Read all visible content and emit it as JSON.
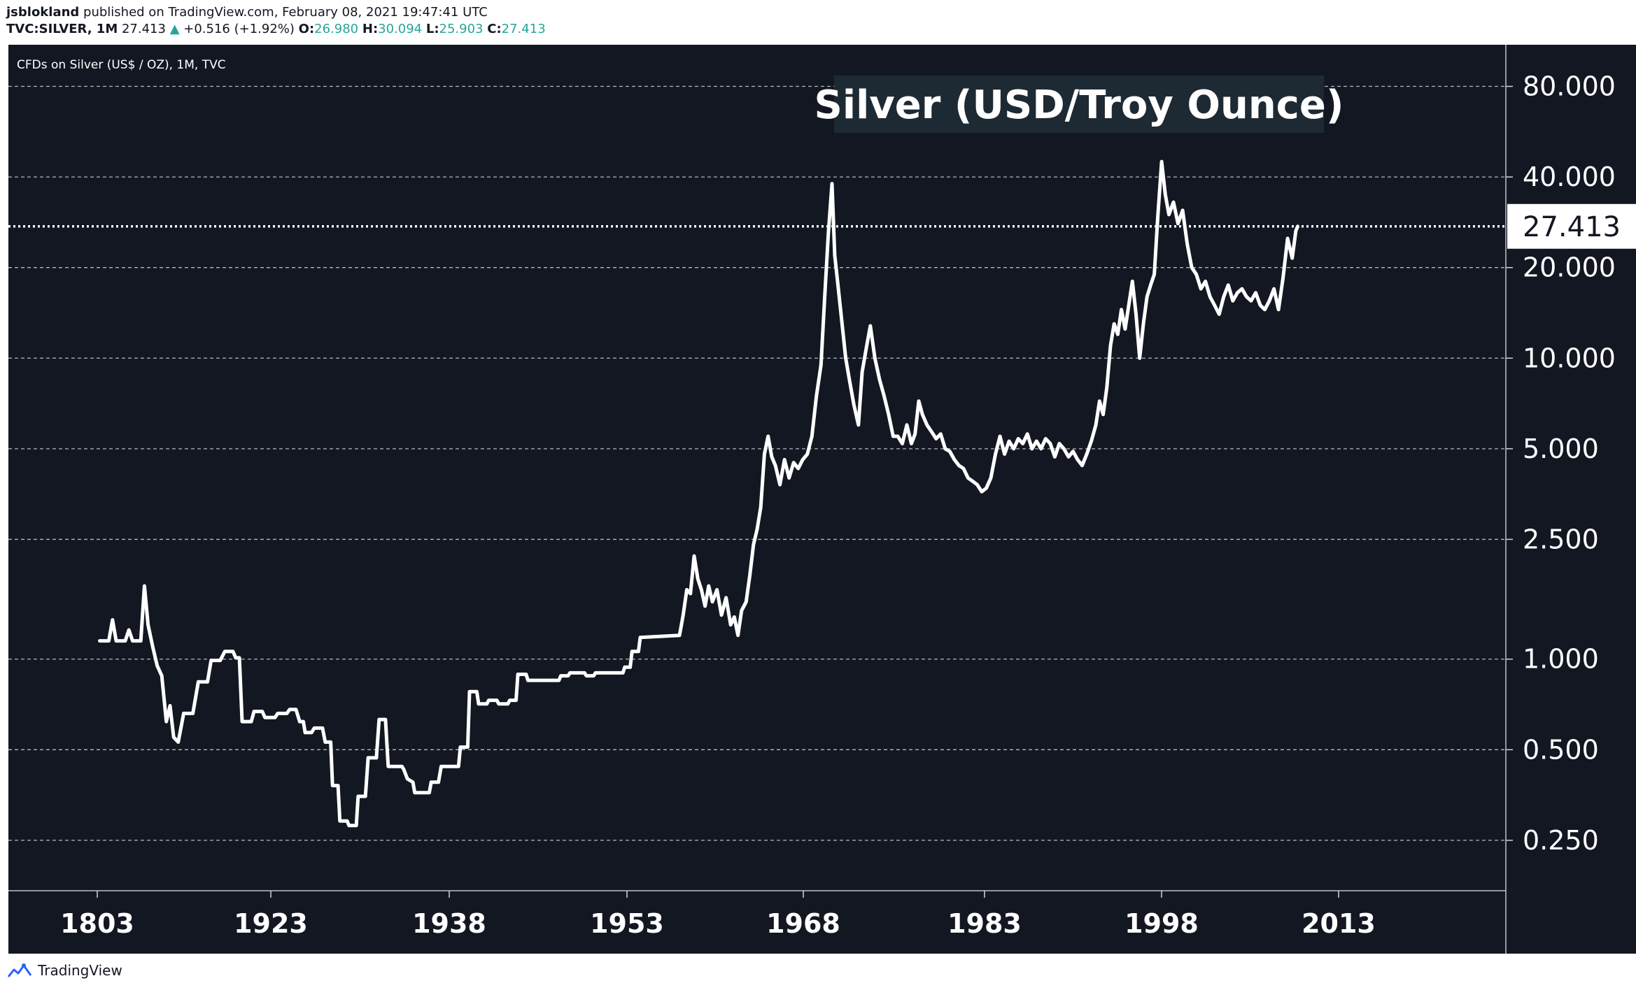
{
  "header": {
    "author": "jsblokland",
    "published_text": "published on TradingView.com, February 08, 2021 19:47:41 UTC",
    "symbol": "TVC:SILVER, 1M",
    "last": "27.413",
    "change_arrow": "▲",
    "change": "+0.516 (+1.92%)",
    "o_label": "O:",
    "o_value": "26.980",
    "h_label": "H:",
    "h_value": "30.094",
    "l_label": "L:",
    "l_value": "25.903",
    "c_label": "C:",
    "c_value": "27.413"
  },
  "footer": {
    "brand": "TradingView",
    "logo_icon": "tradingview-logo-icon"
  },
  "colors": {
    "background": "#131722",
    "line": "#ffffff",
    "grid": "#d1d4dc",
    "text": "#ffffff",
    "accent_up": "#26a69a"
  },
  "chart_data": {
    "type": "line",
    "title": "Silver (USD/Troy Ounce)",
    "subtitle": "CFDs on Silver (US$ / OZ), 1M, TVC",
    "y_scale": "log",
    "ylim": [
      0.17,
      110
    ],
    "x_ticks": [
      "1803",
      "1923",
      "1938",
      "1953",
      "1968",
      "1983",
      "1998",
      "2013"
    ],
    "y_ticks": [
      "80.000",
      "40.000",
      "20.000",
      "10.000",
      "5.000",
      "2.500",
      "1.000",
      "0.500",
      "0.250"
    ],
    "last_value_label": "27.413",
    "series": [
      {
        "points": [
          [
            1908,
            1.15
          ],
          [
            1909,
            1.15
          ],
          [
            1909.4,
            1.35
          ],
          [
            1909.8,
            1.15
          ],
          [
            1910.8,
            1.15
          ],
          [
            1911.2,
            1.25
          ],
          [
            1911.6,
            1.15
          ],
          [
            1912.5,
            1.15
          ],
          [
            1912.9,
            1.75
          ],
          [
            1913.3,
            1.3
          ],
          [
            1913.8,
            1.1
          ],
          [
            1914.3,
            0.95
          ],
          [
            1914.8,
            0.88
          ],
          [
            1915.3,
            0.62
          ],
          [
            1915.7,
            0.7
          ],
          [
            1916.1,
            0.55
          ],
          [
            1916.6,
            0.53
          ],
          [
            1917.2,
            0.66
          ],
          [
            1918.2,
            0.66
          ],
          [
            1918.8,
            0.84
          ],
          [
            1919.8,
            0.84
          ],
          [
            1920.2,
            0.99
          ],
          [
            1921.2,
            0.99
          ],
          [
            1921.7,
            1.06
          ],
          [
            1922.6,
            1.06
          ],
          [
            1922.9,
            1.01
          ],
          [
            1923.3,
            1.01
          ],
          [
            1923.6,
            0.62
          ],
          [
            1924.6,
            0.62
          ],
          [
            1924.9,
            0.67
          ],
          [
            1925.8,
            0.67
          ],
          [
            1926.1,
            0.64
          ],
          [
            1927.2,
            0.64
          ],
          [
            1927.5,
            0.66
          ],
          [
            1928.5,
            0.66
          ],
          [
            1928.8,
            0.68
          ],
          [
            1929.5,
            0.68
          ],
          [
            1929.9,
            0.62
          ],
          [
            1930.3,
            0.62
          ],
          [
            1930.5,
            0.57
          ],
          [
            1931.2,
            0.57
          ],
          [
            1931.5,
            0.59
          ],
          [
            1932.4,
            0.59
          ],
          [
            1932.7,
            0.53
          ],
          [
            1933.3,
            0.53
          ],
          [
            1933.5,
            0.38
          ],
          [
            1934.1,
            0.38
          ],
          [
            1934.3,
            0.29
          ],
          [
            1935.1,
            0.29
          ],
          [
            1935.3,
            0.28
          ],
          [
            1936.1,
            0.28
          ],
          [
            1936.3,
            0.35
          ],
          [
            1937.1,
            0.35
          ],
          [
            1937.4,
            0.47
          ],
          [
            1938.3,
            0.47
          ],
          [
            1938.6,
            0.63
          ],
          [
            1939.3,
            0.63
          ],
          [
            1939.6,
            0.44
          ],
          [
            1941.1,
            0.44
          ],
          [
            1941.3,
            0.43
          ],
          [
            1941.7,
            0.4
          ],
          [
            1942.3,
            0.39
          ],
          [
            1942.5,
            0.36
          ],
          [
            1944.1,
            0.36
          ],
          [
            1944.3,
            0.39
          ],
          [
            1945.1,
            0.39
          ],
          [
            1945.4,
            0.44
          ],
          [
            1947.3,
            0.44
          ],
          [
            1947.5,
            0.51
          ],
          [
            1948.3,
            0.51
          ],
          [
            1948.5,
            0.78
          ],
          [
            1949.3,
            0.78
          ],
          [
            1949.5,
            0.71
          ],
          [
            1950.4,
            0.71
          ],
          [
            1950.6,
            0.73
          ],
          [
            1951.5,
            0.73
          ],
          [
            1951.7,
            0.71
          ],
          [
            1952.7,
            0.71
          ],
          [
            1952.9,
            0.73
          ],
          [
            1953.6,
            0.73
          ],
          [
            1953.8,
            0.89
          ],
          [
            1954.7,
            0.89
          ],
          [
            1954.9,
            0.85
          ],
          [
            1958.3,
            0.85
          ],
          [
            1958.5,
            0.88
          ],
          [
            1959.3,
            0.88
          ],
          [
            1959.5,
            0.9
          ],
          [
            1961.1,
            0.9
          ],
          [
            1961.3,
            0.88
          ],
          [
            1962.1,
            0.88
          ],
          [
            1962.3,
            0.9
          ],
          [
            1965.3,
            0.9
          ],
          [
            1965.5,
            0.94
          ],
          [
            1966.1,
            0.94
          ],
          [
            1966.3,
            1.06
          ],
          [
            1967.0,
            1.06
          ],
          [
            1967.2,
            1.18
          ],
          [
            1971.5,
            1.2
          ],
          [
            1971.9,
            1.4
          ],
          [
            1972.3,
            1.7
          ],
          [
            1972.7,
            1.65
          ],
          [
            1973.1,
            2.2
          ],
          [
            1973.5,
            1.85
          ],
          [
            1973.9,
            1.7
          ],
          [
            1974.3,
            1.5
          ],
          [
            1974.7,
            1.75
          ],
          [
            1975.1,
            1.55
          ],
          [
            1975.6,
            1.7
          ],
          [
            1976.1,
            1.4
          ],
          [
            1976.6,
            1.6
          ],
          [
            1977.1,
            1.3
          ],
          [
            1977.5,
            1.38
          ],
          [
            1977.9,
            1.2
          ],
          [
            1978.3,
            1.45
          ],
          [
            1978.8,
            1.55
          ],
          [
            1979.2,
            1.9
          ],
          [
            1979.6,
            2.4
          ],
          [
            1980.0,
            2.7
          ],
          [
            1980.4,
            3.2
          ],
          [
            1980.8,
            4.8
          ],
          [
            1981.2,
            5.5
          ],
          [
            1981.6,
            4.7
          ],
          [
            1982.0,
            4.4
          ],
          [
            1982.5,
            3.8
          ],
          [
            1983.0,
            4.6
          ],
          [
            1983.5,
            4.0
          ],
          [
            1984.0,
            4.5
          ],
          [
            1984.5,
            4.3
          ],
          [
            1985.0,
            4.6
          ],
          [
            1985.5,
            4.8
          ],
          [
            1986.0,
            5.5
          ],
          [
            1986.5,
            7.5
          ],
          [
            1987.0,
            9.5
          ],
          [
            1987.4,
            16.0
          ],
          [
            1987.8,
            26.0
          ],
          [
            1988.2,
            38.0
          ],
          [
            1988.5,
            22.0
          ],
          [
            1988.9,
            17.0
          ],
          [
            1989.3,
            13.0
          ],
          [
            1989.7,
            10.0
          ],
          [
            1990.1,
            8.5
          ],
          [
            1990.6,
            7.0
          ],
          [
            1991.1,
            6.0
          ],
          [
            1991.5,
            9.0
          ],
          [
            1992.0,
            11.0
          ],
          [
            1992.4,
            12.8
          ],
          [
            1992.9,
            10.0
          ],
          [
            1993.4,
            8.5
          ],
          [
            1993.9,
            7.5
          ],
          [
            1994.4,
            6.5
          ],
          [
            1994.9,
            5.5
          ],
          [
            1995.4,
            5.5
          ],
          [
            1995.9,
            5.2
          ],
          [
            1996.4,
            6.0
          ],
          [
            1996.9,
            5.2
          ],
          [
            1997.3,
            5.6
          ],
          [
            1997.7,
            7.2
          ],
          [
            1998.1,
            6.5
          ],
          [
            1998.6,
            6.0
          ],
          [
            1999.1,
            5.7
          ],
          [
            1999.6,
            5.4
          ],
          [
            2000.1,
            5.6
          ],
          [
            2000.6,
            5.0
          ],
          [
            2001.1,
            4.9
          ],
          [
            2001.6,
            4.6
          ],
          [
            2002.1,
            4.4
          ],
          [
            2002.6,
            4.3
          ],
          [
            2003.1,
            4.0
          ],
          [
            2003.6,
            3.9
          ],
          [
            2004.1,
            3.8
          ],
          [
            2004.6,
            3.6
          ],
          [
            2005.1,
            3.7
          ],
          [
            2005.6,
            4.0
          ],
          [
            2006.1,
            4.8
          ],
          [
            2006.6,
            5.5
          ],
          [
            2007.1,
            4.8
          ],
          [
            2007.6,
            5.3
          ],
          [
            2008.1,
            5.0
          ],
          [
            2008.6,
            5.4
          ],
          [
            2009.1,
            5.2
          ],
          [
            2009.6,
            5.6
          ],
          [
            2010.1,
            5.0
          ],
          [
            2010.6,
            5.3
          ],
          [
            2011.1,
            5.0
          ],
          [
            2011.6,
            5.4
          ],
          [
            2012.1,
            5.2
          ],
          [
            2012.6,
            4.7
          ],
          [
            2013.1,
            5.2
          ],
          [
            2013.6,
            5.0
          ],
          [
            2014.1,
            4.7
          ],
          [
            2014.6,
            4.9
          ],
          [
            2015.1,
            4.6
          ],
          [
            2015.6,
            4.4
          ],
          [
            2016.1,
            4.8
          ],
          [
            2016.6,
            5.3
          ],
          [
            2017.1,
            6.0
          ],
          [
            2017.5,
            7.2
          ],
          [
            2017.9,
            6.5
          ],
          [
            2018.3,
            8.0
          ],
          [
            2018.7,
            11.0
          ],
          [
            2019.1,
            13.0
          ],
          [
            2019.5,
            12.0
          ],
          [
            2019.9,
            14.5
          ],
          [
            2020.3,
            12.5
          ],
          [
            2020.7,
            15.0
          ],
          [
            2021.1,
            18.0
          ],
          [
            2021.5,
            14.0
          ],
          [
            2021.9,
            10.0
          ],
          [
            2022.3,
            13.0
          ],
          [
            2022.7,
            16.0
          ],
          [
            2023.1,
            17.5
          ],
          [
            2023.5,
            19.0
          ],
          [
            2023.9,
            30.0
          ],
          [
            2024.3,
            45.0
          ],
          [
            2024.7,
            35.0
          ],
          [
            2025.1,
            30.0
          ],
          [
            2025.6,
            33.0
          ],
          [
            2026.1,
            28.0
          ],
          [
            2026.6,
            31.0
          ],
          [
            2027.1,
            24.0
          ],
          [
            2027.6,
            20.0
          ],
          [
            2028.1,
            19.0
          ],
          [
            2028.6,
            17.0
          ],
          [
            2029.1,
            18.0
          ],
          [
            2029.6,
            16.0
          ],
          [
            2030.1,
            15.0
          ],
          [
            2030.6,
            14.0
          ],
          [
            2031.1,
            16.0
          ],
          [
            2031.6,
            17.5
          ],
          [
            2032.1,
            15.5
          ],
          [
            2032.6,
            16.5
          ],
          [
            2033.1,
            17.0
          ],
          [
            2033.6,
            16.0
          ],
          [
            2034.1,
            15.5
          ],
          [
            2034.6,
            16.5
          ],
          [
            2035.1,
            15.0
          ],
          [
            2035.6,
            14.5
          ],
          [
            2036.1,
            15.5
          ],
          [
            2036.6,
            17.0
          ],
          [
            2037.1,
            14.5
          ],
          [
            2037.6,
            18.5
          ],
          [
            2038.1,
            25.0
          ],
          [
            2038.6,
            21.5
          ],
          [
            2039.0,
            26.5
          ],
          [
            2039.2,
            27.413
          ]
        ]
      }
    ]
  }
}
